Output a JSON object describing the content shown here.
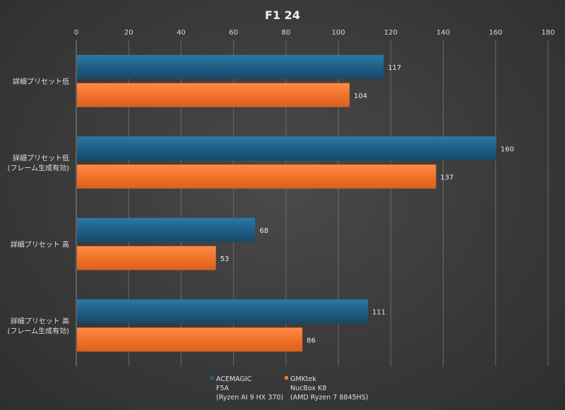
{
  "chart_data": {
    "type": "bar",
    "orientation": "horizontal",
    "title": "F1 24",
    "xlim": [
      0,
      180
    ],
    "xticks": [
      0,
      20,
      40,
      60,
      80,
      100,
      120,
      140,
      160,
      180
    ],
    "grid": true,
    "legend_position": "bottom",
    "categories": [
      [
        "詳細プリセット低"
      ],
      [
        "詳細プリセット低",
        "(フレーム生成有効)"
      ],
      [
        "詳細プリセット 高"
      ],
      [
        "詳細プリセット 高",
        "(フレーム生成有効)"
      ]
    ],
    "series": [
      {
        "name": [
          "ACEMAGIC",
          "F5A",
          "(Ryzen AI 9 HX 370)"
        ],
        "color": "#1f5f85",
        "values": [
          117,
          160,
          68,
          111
        ]
      },
      {
        "name": [
          "GMKtek",
          "NucBox K8",
          "(AMD Ryzen 7 8845HS)"
        ],
        "color": "#f2722b",
        "values": [
          104,
          137,
          53,
          86
        ]
      }
    ]
  }
}
